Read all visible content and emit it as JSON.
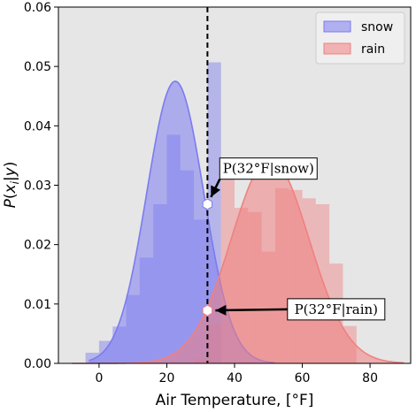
{
  "chart_data": {
    "type": "bar",
    "xlabel": "Air Temperature, [°F]",
    "ylabel": "P(x_i|y)",
    "xlim": [
      -12,
      92
    ],
    "ylim": [
      0,
      0.06
    ],
    "xticks": [
      0,
      20,
      40,
      60,
      80
    ],
    "yticks": [
      0.0,
      0.01,
      0.02,
      0.03,
      0.04,
      0.05,
      0.06
    ],
    "xtick_labels": [
      "0",
      "20",
      "40",
      "60",
      "80"
    ],
    "ytick_labels": [
      "0.00",
      "0.01",
      "0.02",
      "0.03",
      "0.04",
      "0.05",
      "0.06"
    ],
    "grid": false,
    "legend": "top-right",
    "vline_x": 32,
    "series": [
      {
        "name": "snow",
        "color": "#7b7bf0",
        "histogram": {
          "bin_width": 4,
          "bins": [
            {
              "x": -4,
              "y": 0.0018
            },
            {
              "x": 0,
              "y": 0.0038
            },
            {
              "x": 4,
              "y": 0.0062
            },
            {
              "x": 8,
              "y": 0.0115
            },
            {
              "x": 12,
              "y": 0.0178
            },
            {
              "x": 16,
              "y": 0.0268
            },
            {
              "x": 20,
              "y": 0.0385
            },
            {
              "x": 24,
              "y": 0.0325
            },
            {
              "x": 28,
              "y": 0.0242
            },
            {
              "x": 32,
              "y": 0.0507
            }
          ]
        },
        "gaussian": {
          "mean": 22.5,
          "std": 8.4,
          "peak": 0.0475,
          "x_range": [
            -3,
            52
          ]
        }
      },
      {
        "name": "rain",
        "color": "#f08080",
        "histogram": {
          "bin_width": 4,
          "bins": [
            {
              "x": 28,
              "y": 0.0008
            },
            {
              "x": 32,
              "y": 0.0065
            },
            {
              "x": 36,
              "y": 0.0335
            },
            {
              "x": 40,
              "y": 0.0262
            },
            {
              "x": 44,
              "y": 0.0255
            },
            {
              "x": 48,
              "y": 0.0188
            },
            {
              "x": 52,
              "y": 0.0295
            },
            {
              "x": 56,
              "y": 0.0292
            },
            {
              "x": 60,
              "y": 0.0278
            },
            {
              "x": 64,
              "y": 0.0268
            },
            {
              "x": 68,
              "y": 0.0168
            },
            {
              "x": 72,
              "y": 0.0063
            }
          ]
        },
        "gaussian": {
          "mean": 50.5,
          "std": 11.5,
          "peak": 0.0345,
          "x_range": [
            -8,
            90
          ]
        }
      }
    ],
    "annotations": [
      {
        "label": "P(32°F|snow)",
        "point": [
          32,
          0.0268
        ],
        "label_pos": [
          50,
          0.0328
        ],
        "marker_color": "#7b7bf0"
      },
      {
        "label": "P(32°F|rain)",
        "point": [
          32,
          0.0089
        ],
        "label_pos": [
          70,
          0.0091
        ],
        "marker_color": "#f08080"
      }
    ]
  }
}
